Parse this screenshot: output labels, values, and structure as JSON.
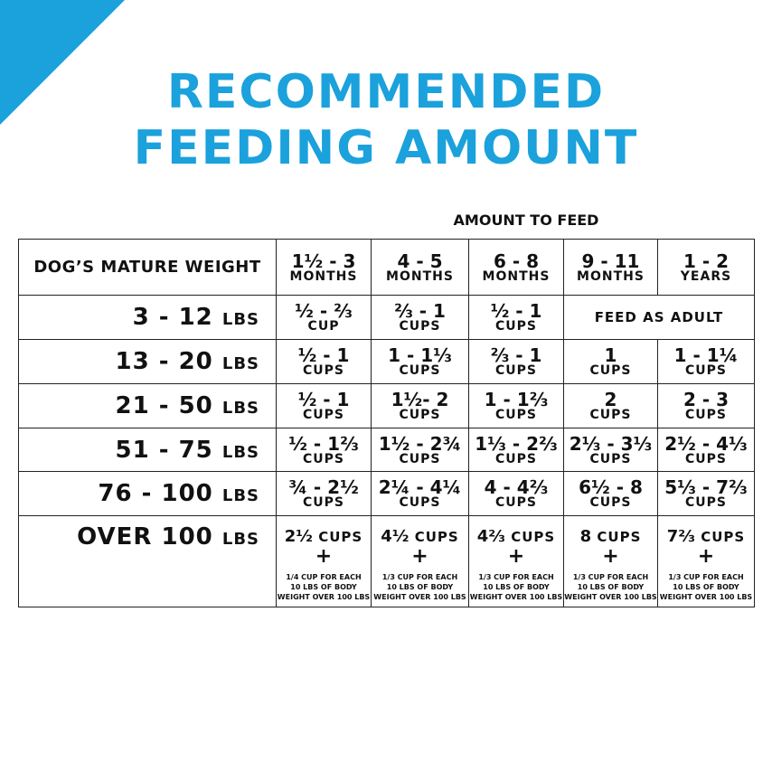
{
  "header": {
    "title_lines": [
      "RECOMMENDED",
      "FEEDING AMOUNT"
    ]
  },
  "table": {
    "group_header": "AMOUNT TO FEED",
    "row_header": "DOG’S MATURE WEIGHT",
    "columns": [
      [
        "1½ - 3",
        "MONTHS"
      ],
      [
        "4 - 5",
        "MONTHS"
      ],
      [
        "6 - 8",
        "MONTHS"
      ],
      [
        "9 - 11",
        "MONTHS"
      ],
      [
        "1 - 2",
        "YEARS"
      ]
    ],
    "rows": [
      {
        "weight": "3 - 12",
        "unit": "LBS",
        "cells": [
          {
            "amount": "½ - ⅔",
            "unit": "CUP"
          },
          {
            "amount": "⅔ - 1",
            "unit": "CUPS"
          },
          {
            "amount": "½ - 1",
            "unit": "CUPS"
          }
        ],
        "span_text": "FEED AS ADULT"
      },
      {
        "weight": "13 - 20",
        "unit": "LBS",
        "cells": [
          {
            "amount": "½ - 1",
            "unit": "CUPS"
          },
          {
            "amount": "1 - 1⅓",
            "unit": "CUPS"
          },
          {
            "amount": "⅔ - 1",
            "unit": "CUPS"
          },
          {
            "amount": "1",
            "unit": "CUPS"
          },
          {
            "amount": "1 - 1¼",
            "unit": "CUPS"
          }
        ]
      },
      {
        "weight": "21 - 50",
        "unit": "LBS",
        "cells": [
          {
            "amount": "½ - 1",
            "unit": "CUPS"
          },
          {
            "amount": "1½- 2",
            "unit": "CUPS"
          },
          {
            "amount": "1 - 1⅔",
            "unit": "CUPS"
          },
          {
            "amount": "2",
            "unit": "CUPS"
          },
          {
            "amount": "2 - 3",
            "unit": "CUPS"
          }
        ]
      },
      {
        "weight": "51 - 75",
        "unit": "LBS",
        "cells": [
          {
            "amount": "½ - 1⅔",
            "unit": "CUPS"
          },
          {
            "amount": "1½ - 2¾",
            "unit": "CUPS"
          },
          {
            "amount": "1⅓ - 2⅔",
            "unit": "CUPS"
          },
          {
            "amount": "2⅓ - 3⅓",
            "unit": "CUPS"
          },
          {
            "amount": "2½ - 4⅓",
            "unit": "CUPS"
          }
        ]
      },
      {
        "weight": "76 - 100",
        "unit": "LBS",
        "cells": [
          {
            "amount": "¾ - 2½",
            "unit": "CUPS"
          },
          {
            "amount": "2¼ - 4¼",
            "unit": "CUPS"
          },
          {
            "amount": "4 - 4⅔",
            "unit": "CUPS"
          },
          {
            "amount": "6½ - 8",
            "unit": "CUPS"
          },
          {
            "amount": "5⅓ - 7⅔",
            "unit": "CUPS"
          }
        ]
      },
      {
        "weight": "OVER 100",
        "unit": "LBS",
        "cells": [
          {
            "amount": "2½",
            "unit": "CUPS",
            "plus": "+",
            "note": [
              "1/4 CUP FOR EACH",
              "10 LBS OF BODY",
              "WEIGHT OVER 100 LBS"
            ]
          },
          {
            "amount": "4½",
            "unit": "CUPS",
            "plus": "+",
            "note": [
              "1/3 CUP FOR EACH",
              "10 LBS OF BODY",
              "WEIGHT OVER 100 LBS"
            ]
          },
          {
            "amount": "4⅔",
            "unit": "CUPS",
            "plus": "+",
            "note": [
              "1/3 CUP FOR EACH",
              "10 LBS OF BODY",
              "WEIGHT OVER 100 LBS"
            ]
          },
          {
            "amount": "8",
            "unit": "CUPS",
            "plus": "+",
            "note": [
              "1/3 CUP FOR EACH",
              "10 LBS OF BODY",
              "WEIGHT OVER 100 LBS"
            ]
          },
          {
            "amount": "7⅔",
            "unit": "CUPS",
            "plus": "+",
            "note": [
              "1/3 CUP FOR EACH",
              "10 LBS OF BODY",
              "WEIGHT OVER 100 LBS"
            ]
          }
        ]
      }
    ]
  }
}
